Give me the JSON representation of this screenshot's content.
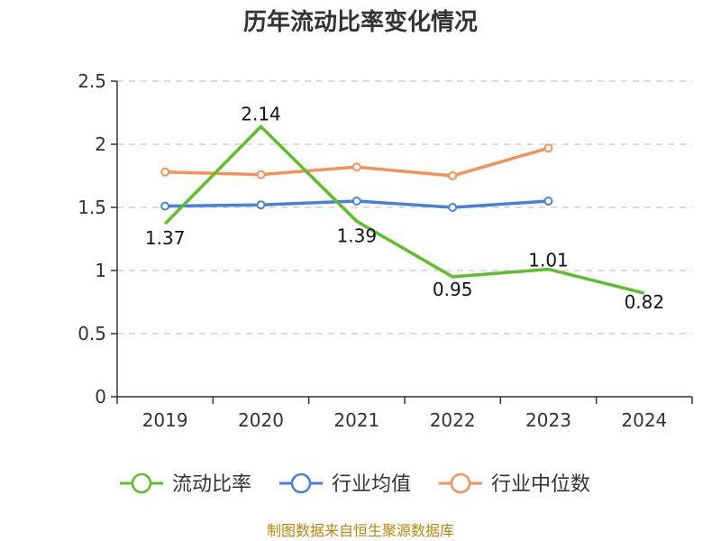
{
  "chart_data": {
    "type": "line",
    "title": "历年流动比率变化情况",
    "categories": [
      "2019",
      "2020",
      "2021",
      "2022",
      "2023",
      "2024"
    ],
    "ylim": [
      0,
      2.5
    ],
    "yticks": [
      "0",
      "0.5",
      "1",
      "1.5",
      "2",
      "2.5"
    ],
    "grid": true,
    "legend_position": "bottom",
    "series": [
      {
        "name": "流动比率",
        "color": "#5cbf2a",
        "values": [
          1.37,
          2.14,
          1.39,
          0.95,
          1.01,
          0.82
        ],
        "labels": [
          "1.37",
          "2.14",
          "1.39",
          "0.95",
          "1.01",
          "0.82"
        ]
      },
      {
        "name": "行业均值",
        "color": "#4a7fdc",
        "values": [
          1.51,
          1.52,
          1.55,
          1.5,
          1.55,
          null
        ]
      },
      {
        "name": "行业中位数",
        "color": "#f59058",
        "values": [
          1.78,
          1.76,
          1.82,
          1.75,
          1.97,
          null
        ]
      }
    ]
  },
  "source": "制图数据来自恒生聚源数据库"
}
